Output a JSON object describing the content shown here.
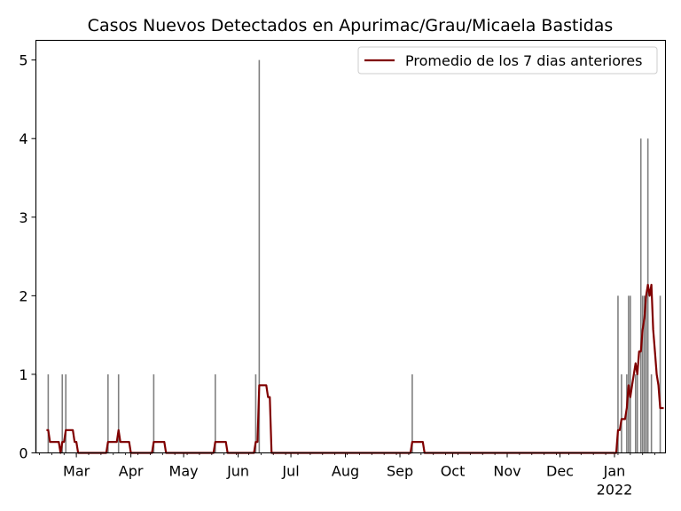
{
  "chart_data": {
    "type": "bar",
    "title": "Casos Nuevos Detectados en Apurimac/Grau/Micaela Bastidas",
    "xlabel": "",
    "ylabel": "",
    "x_start": "2021-02-06",
    "x_end": "2022-01-30",
    "ylim": [
      0,
      5.25
    ],
    "yticks": [
      0,
      1,
      2,
      3,
      4,
      5
    ],
    "xticks": [
      {
        "date": "2021-03-01",
        "label": "Mar"
      },
      {
        "date": "2021-04-01",
        "label": "Apr"
      },
      {
        "date": "2021-05-01",
        "label": "May"
      },
      {
        "date": "2021-06-01",
        "label": "Jun"
      },
      {
        "date": "2021-07-01",
        "label": "Jul"
      },
      {
        "date": "2021-08-01",
        "label": "Aug"
      },
      {
        "date": "2021-09-01",
        "label": "Sep"
      },
      {
        "date": "2021-10-01",
        "label": "Oct"
      },
      {
        "date": "2021-11-01",
        "label": "Nov"
      },
      {
        "date": "2021-12-01",
        "label": "Dec"
      },
      {
        "date": "2022-01-01",
        "label": "Jan",
        "sublabel": "2022"
      }
    ],
    "legend": {
      "position": "top-right",
      "entries": [
        "Promedio de los 7 dias anteriores"
      ]
    },
    "bar_color": "#808080",
    "line_color": "#800000",
    "bars": [
      [
        "2021-02-06",
        1
      ],
      [
        "2021-02-13",
        1
      ],
      [
        "2021-02-21",
        1
      ],
      [
        "2021-02-23",
        1
      ],
      [
        "2021-03-19",
        1
      ],
      [
        "2021-03-25",
        1
      ],
      [
        "2021-04-14",
        1
      ],
      [
        "2021-05-19",
        1
      ],
      [
        "2021-06-11",
        1
      ],
      [
        "2021-06-13",
        5
      ],
      [
        "2021-09-08",
        1
      ],
      [
        "2022-01-03",
        2
      ],
      [
        "2022-01-05",
        1
      ],
      [
        "2022-01-08",
        1
      ],
      [
        "2022-01-09",
        2
      ],
      [
        "2022-01-10",
        2
      ],
      [
        "2022-01-13",
        1
      ],
      [
        "2022-01-14",
        1
      ],
      [
        "2022-01-16",
        4
      ],
      [
        "2022-01-17",
        2
      ],
      [
        "2022-01-18",
        2
      ],
      [
        "2022-01-19",
        2
      ],
      [
        "2022-01-20",
        4
      ],
      [
        "2022-01-22",
        1
      ],
      [
        "2022-01-27",
        2
      ]
    ],
    "series": [
      {
        "name": "Promedio de los 7 dias anteriores",
        "points": [
          [
            "2021-02-12",
            0.29
          ],
          [
            "2021-02-13",
            0.29
          ],
          [
            "2021-02-14",
            0.14
          ],
          [
            "2021-02-19",
            0.14
          ],
          [
            "2021-02-20",
            0.0
          ],
          [
            "2021-02-21",
            0.14
          ],
          [
            "2021-02-22",
            0.14
          ],
          [
            "2021-02-23",
            0.29
          ],
          [
            "2021-02-27",
            0.29
          ],
          [
            "2021-02-28",
            0.14
          ],
          [
            "2021-03-01",
            0.14
          ],
          [
            "2021-03-02",
            0.0
          ],
          [
            "2021-03-18",
            0.0
          ],
          [
            "2021-03-19",
            0.14
          ],
          [
            "2021-03-24",
            0.14
          ],
          [
            "2021-03-25",
            0.29
          ],
          [
            "2021-03-26",
            0.14
          ],
          [
            "2021-03-31",
            0.14
          ],
          [
            "2021-04-01",
            0.0
          ],
          [
            "2021-04-13",
            0.0
          ],
          [
            "2021-04-14",
            0.14
          ],
          [
            "2021-04-20",
            0.14
          ],
          [
            "2021-04-21",
            0.0
          ],
          [
            "2021-05-18",
            0.0
          ],
          [
            "2021-05-19",
            0.14
          ],
          [
            "2021-05-25",
            0.14
          ],
          [
            "2021-05-26",
            0.0
          ],
          [
            "2021-06-10",
            0.0
          ],
          [
            "2021-06-11",
            0.14
          ],
          [
            "2021-06-12",
            0.14
          ],
          [
            "2021-06-13",
            0.86
          ],
          [
            "2021-06-17",
            0.86
          ],
          [
            "2021-06-18",
            0.71
          ],
          [
            "2021-06-19",
            0.71
          ],
          [
            "2021-06-20",
            0.0
          ],
          [
            "2021-09-07",
            0.0
          ],
          [
            "2021-09-08",
            0.14
          ],
          [
            "2021-09-14",
            0.14
          ],
          [
            "2021-09-15",
            0.0
          ],
          [
            "2022-01-02",
            0.0
          ],
          [
            "2022-01-03",
            0.29
          ],
          [
            "2022-01-04",
            0.29
          ],
          [
            "2022-01-05",
            0.43
          ],
          [
            "2022-01-07",
            0.43
          ],
          [
            "2022-01-08",
            0.57
          ],
          [
            "2022-01-09",
            0.86
          ],
          [
            "2022-01-10",
            0.71
          ],
          [
            "2022-01-11",
            0.86
          ],
          [
            "2022-01-12",
            1.0
          ],
          [
            "2022-01-13",
            1.14
          ],
          [
            "2022-01-14",
            1.0
          ],
          [
            "2022-01-15",
            1.29
          ],
          [
            "2022-01-16",
            1.29
          ],
          [
            "2022-01-17",
            1.57
          ],
          [
            "2022-01-18",
            1.71
          ],
          [
            "2022-01-19",
            2.0
          ],
          [
            "2022-01-20",
            2.14
          ],
          [
            "2022-01-21",
            2.0
          ],
          [
            "2022-01-22",
            2.14
          ],
          [
            "2022-01-23",
            1.57
          ],
          [
            "2022-01-24",
            1.29
          ],
          [
            "2022-01-25",
            1.0
          ],
          [
            "2022-01-26",
            0.86
          ],
          [
            "2022-01-27",
            0.57
          ],
          [
            "2022-01-29",
            0.57
          ]
        ]
      }
    ]
  }
}
